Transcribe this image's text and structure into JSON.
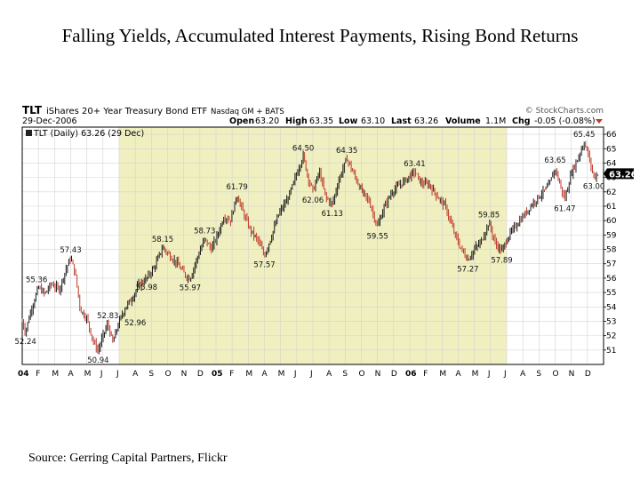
{
  "slide": {
    "title": "Falling Yields, Accumulated Interest Payments, Rising Bond Returns",
    "source": "Source: Gerring Capital Partners, Flickr"
  },
  "header": {
    "symbol": "TLT",
    "name": "iShares 20+ Year Treasury Bond ETF",
    "exchange": "Nasdaq GM + BATS",
    "watermark": "© StockCharts.com",
    "date": "29-Dec-2006",
    "open_label": "Open",
    "open_value": "63.20",
    "high_label": "High",
    "high_value": "63.35",
    "low_label": "Low",
    "low_value": "63.10",
    "last_label": "Last",
    "last_value": "63.26",
    "volume_label": "Volume",
    "volume_value": "1.1M",
    "chg_label": "Chg",
    "chg_value": "-0.05 (-0.08%)",
    "legend": "TLT (Daily) 63.26 (29 Dec)"
  },
  "colors": {
    "highlight": "#efefc0",
    "price_up": "#1a1a1a",
    "price_down": "#c0392b",
    "current_box": "#000000"
  },
  "chart_data": {
    "type": "line",
    "title": "TLT (Daily) 63.26 (29 Dec)",
    "xlabel": "",
    "ylabel": "",
    "ylim": [
      50,
      66.5
    ],
    "x_range_months": [
      0,
      36
    ],
    "highlight_range_months": [
      6,
      30
    ],
    "y_ticks": [
      51,
      52,
      53,
      54,
      55,
      56,
      57,
      58,
      59,
      60,
      61,
      62,
      63,
      64,
      65,
      66
    ],
    "current_value": 63.26,
    "month_ticks": [
      {
        "m": 0.0,
        "label": "04",
        "bold": true
      },
      {
        "m": 1.0,
        "label": "F"
      },
      {
        "m": 2.0,
        "label": "M"
      },
      {
        "m": 3.0,
        "label": "A"
      },
      {
        "m": 4.0,
        "label": "M"
      },
      {
        "m": 5.0,
        "label": "J"
      },
      {
        "m": 6.0,
        "label": "J"
      },
      {
        "m": 7.0,
        "label": "A"
      },
      {
        "m": 8.0,
        "label": "S"
      },
      {
        "m": 9.0,
        "label": "O"
      },
      {
        "m": 10.0,
        "label": "N"
      },
      {
        "m": 11.0,
        "label": "D"
      },
      {
        "m": 12.0,
        "label": "05",
        "bold": true
      },
      {
        "m": 13.0,
        "label": "F"
      },
      {
        "m": 14.0,
        "label": "M"
      },
      {
        "m": 15.0,
        "label": "A"
      },
      {
        "m": 16.0,
        "label": "M"
      },
      {
        "m": 17.0,
        "label": "J"
      },
      {
        "m": 18.0,
        "label": "J"
      },
      {
        "m": 19.0,
        "label": "A"
      },
      {
        "m": 20.0,
        "label": "S"
      },
      {
        "m": 21.0,
        "label": "O"
      },
      {
        "m": 22.0,
        "label": "N"
      },
      {
        "m": 23.0,
        "label": "D"
      },
      {
        "m": 24.0,
        "label": "06",
        "bold": true
      },
      {
        "m": 25.0,
        "label": "F"
      },
      {
        "m": 26.0,
        "label": "M"
      },
      {
        "m": 27.0,
        "label": "A"
      },
      {
        "m": 28.0,
        "label": "M"
      },
      {
        "m": 29.0,
        "label": "J"
      },
      {
        "m": 30.0,
        "label": "J"
      },
      {
        "m": 31.0,
        "label": "A"
      },
      {
        "m": 32.0,
        "label": "S"
      },
      {
        "m": 33.0,
        "label": "O"
      },
      {
        "m": 34.0,
        "label": "N"
      },
      {
        "m": 35.0,
        "label": "D"
      }
    ],
    "series": [
      {
        "name": "TLT",
        "points": [
          [
            0.0,
            53.0
          ],
          [
            0.2,
            52.24
          ],
          [
            0.5,
            53.6
          ],
          [
            1.0,
            55.36
          ],
          [
            1.4,
            54.9
          ],
          [
            1.8,
            55.6
          ],
          [
            2.3,
            55.2
          ],
          [
            2.7,
            56.6
          ],
          [
            3.0,
            57.43
          ],
          [
            3.3,
            56.2
          ],
          [
            3.6,
            53.8
          ],
          [
            4.0,
            53.2
          ],
          [
            4.4,
            51.6
          ],
          [
            4.7,
            50.94
          ],
          [
            5.0,
            52.0
          ],
          [
            5.3,
            52.83
          ],
          [
            5.6,
            51.5
          ],
          [
            6.0,
            52.96
          ],
          [
            6.4,
            54.0
          ],
          [
            6.8,
            54.6
          ],
          [
            7.2,
            55.5
          ],
          [
            7.7,
            55.98
          ],
          [
            8.2,
            56.8
          ],
          [
            8.7,
            58.15
          ],
          [
            9.1,
            57.6
          ],
          [
            9.6,
            57.0
          ],
          [
            10.1,
            56.2
          ],
          [
            10.4,
            55.97
          ],
          [
            10.8,
            57.3
          ],
          [
            11.3,
            58.73
          ],
          [
            11.7,
            58.0
          ],
          [
            12.1,
            59.0
          ],
          [
            12.5,
            60.3
          ],
          [
            12.9,
            60.0
          ],
          [
            13.3,
            61.79
          ],
          [
            13.7,
            60.5
          ],
          [
            14.1,
            59.4
          ],
          [
            14.6,
            58.6
          ],
          [
            15.0,
            57.57
          ],
          [
            15.4,
            58.8
          ],
          [
            15.9,
            60.5
          ],
          [
            16.4,
            61.4
          ],
          [
            16.8,
            62.6
          ],
          [
            17.1,
            63.6
          ],
          [
            17.4,
            64.5
          ],
          [
            17.7,
            63.0
          ],
          [
            18.0,
            62.06
          ],
          [
            18.4,
            63.4
          ],
          [
            18.8,
            61.6
          ],
          [
            19.2,
            61.13
          ],
          [
            19.6,
            62.8
          ],
          [
            20.1,
            64.35
          ],
          [
            20.5,
            63.3
          ],
          [
            21.0,
            62.1
          ],
          [
            21.5,
            61.3
          ],
          [
            22.0,
            59.55
          ],
          [
            22.4,
            60.9
          ],
          [
            22.9,
            62.0
          ],
          [
            23.4,
            62.5
          ],
          [
            23.9,
            63.0
          ],
          [
            24.3,
            63.41
          ],
          [
            24.7,
            62.6
          ],
          [
            25.2,
            62.5
          ],
          [
            25.7,
            61.7
          ],
          [
            26.2,
            61.0
          ],
          [
            26.7,
            59.3
          ],
          [
            27.1,
            58.2
          ],
          [
            27.6,
            57.27
          ],
          [
            28.0,
            58.0
          ],
          [
            28.4,
            58.5
          ],
          [
            28.9,
            59.85
          ],
          [
            29.3,
            58.4
          ],
          [
            29.7,
            57.89
          ],
          [
            30.1,
            58.9
          ],
          [
            30.6,
            59.7
          ],
          [
            31.1,
            60.4
          ],
          [
            31.6,
            61.2
          ],
          [
            32.1,
            61.8
          ],
          [
            32.6,
            62.4
          ],
          [
            33.0,
            63.65
          ],
          [
            33.3,
            62.5
          ],
          [
            33.6,
            61.47
          ],
          [
            34.0,
            63.3
          ],
          [
            34.4,
            64.3
          ],
          [
            34.8,
            65.45
          ],
          [
            35.1,
            64.4
          ],
          [
            35.4,
            63.0
          ],
          [
            35.65,
            63.26
          ]
        ]
      }
    ],
    "annotations": [
      {
        "m": 0.2,
        "v": 52.24,
        "text": "52.24",
        "pos": "below"
      },
      {
        "m": 1.0,
        "v": 55.36,
        "text": "55.36",
        "pos": "left-above"
      },
      {
        "m": 3.0,
        "v": 57.43,
        "text": "57.43",
        "pos": "above"
      },
      {
        "m": 4.7,
        "v": 50.94,
        "text": "50.94",
        "pos": "below"
      },
      {
        "m": 5.3,
        "v": 52.83,
        "text": "52.83",
        "pos": "above"
      },
      {
        "m": 6.0,
        "v": 52.96,
        "text": "52.96",
        "pos": "right"
      },
      {
        "m": 7.7,
        "v": 55.98,
        "text": "55.98",
        "pos": "below"
      },
      {
        "m": 8.7,
        "v": 58.15,
        "text": "58.15",
        "pos": "above"
      },
      {
        "m": 10.4,
        "v": 55.97,
        "text": "55.97",
        "pos": "below"
      },
      {
        "m": 11.3,
        "v": 58.73,
        "text": "58.73",
        "pos": "above"
      },
      {
        "m": 13.3,
        "v": 61.79,
        "text": "61.79",
        "pos": "above"
      },
      {
        "m": 15.0,
        "v": 57.57,
        "text": "57.57",
        "pos": "below"
      },
      {
        "m": 17.4,
        "v": 64.5,
        "text": "64.50",
        "pos": "above"
      },
      {
        "m": 18.0,
        "v": 62.06,
        "text": "62.06",
        "pos": "below"
      },
      {
        "m": 19.2,
        "v": 61.13,
        "text": "61.13",
        "pos": "below"
      },
      {
        "m": 20.1,
        "v": 64.35,
        "text": "64.35",
        "pos": "above"
      },
      {
        "m": 22.0,
        "v": 59.55,
        "text": "59.55",
        "pos": "below"
      },
      {
        "m": 24.3,
        "v": 63.41,
        "text": "63.41",
        "pos": "above"
      },
      {
        "m": 27.6,
        "v": 57.27,
        "text": "57.27",
        "pos": "below"
      },
      {
        "m": 28.9,
        "v": 59.85,
        "text": "59.85",
        "pos": "above"
      },
      {
        "m": 29.7,
        "v": 57.89,
        "text": "57.89",
        "pos": "below"
      },
      {
        "m": 33.0,
        "v": 63.65,
        "text": "63.65",
        "pos": "above"
      },
      {
        "m": 33.6,
        "v": 61.47,
        "text": "61.47",
        "pos": "below"
      },
      {
        "m": 34.8,
        "v": 65.45,
        "text": "65.45",
        "pos": "above"
      },
      {
        "m": 35.4,
        "v": 63.0,
        "text": "63.00",
        "pos": "below"
      }
    ]
  }
}
